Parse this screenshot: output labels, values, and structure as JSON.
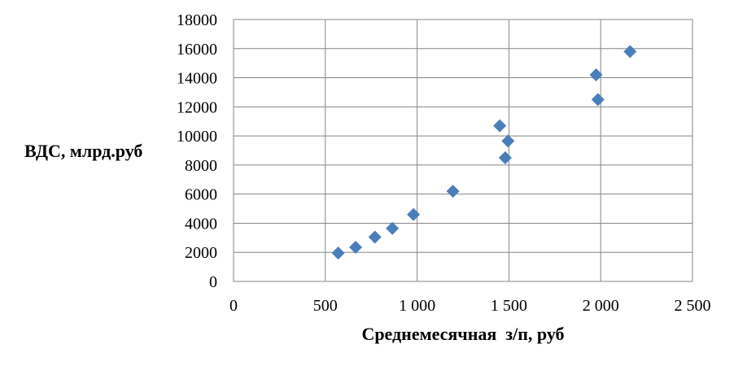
{
  "chart_data": {
    "type": "scatter",
    "xlabel": "Среднемесячная  з/п, руб",
    "ylabel": "ВДС, млрд.руб",
    "xlim": [
      0,
      2500
    ],
    "ylim": [
      0,
      18000
    ],
    "x_ticks": [
      0,
      500,
      1000,
      1500,
      2000,
      2500
    ],
    "x_tick_labels": [
      "0",
      "500",
      "1 000",
      "1 500",
      "2 000",
      "2 500"
    ],
    "y_ticks": [
      0,
      2000,
      4000,
      6000,
      8000,
      10000,
      12000,
      14000,
      16000,
      18000
    ],
    "y_tick_labels": [
      "0",
      "2000",
      "4000",
      "6000",
      "8000",
      "10000",
      "12000",
      "14000",
      "16000",
      "18000"
    ],
    "grid": true,
    "marker_color": "#4a7ebb",
    "series": [
      {
        "points": [
          {
            "x": 570,
            "y": 1950
          },
          {
            "x": 665,
            "y": 2350
          },
          {
            "x": 770,
            "y": 3050
          },
          {
            "x": 865,
            "y": 3650
          },
          {
            "x": 980,
            "y": 4600
          },
          {
            "x": 1195,
            "y": 6200
          },
          {
            "x": 1450,
            "y": 10700
          },
          {
            "x": 1495,
            "y": 9650
          },
          {
            "x": 1480,
            "y": 8500
          },
          {
            "x": 1975,
            "y": 14200
          },
          {
            "x": 1985,
            "y": 12500
          },
          {
            "x": 2160,
            "y": 15800
          }
        ]
      }
    ]
  }
}
